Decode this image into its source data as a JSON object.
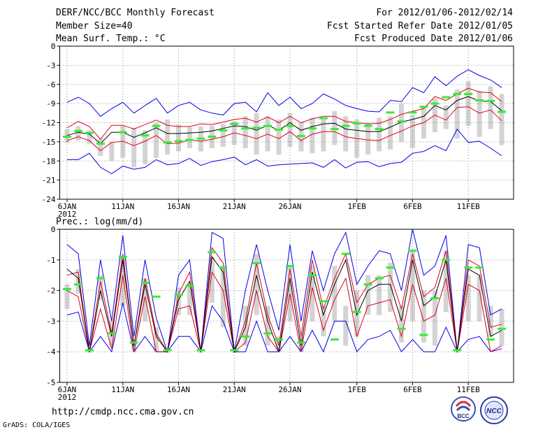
{
  "header": {
    "title": "DERF/NCC/BCC Monthly Forecast",
    "member": "Member Size=40",
    "variable": "Mean Surf. Temp.: °C",
    "period": "For 2012/01/06-2012/02/14",
    "started": "Fcst Started Refer Date 2012/01/05",
    "produced": "Fcst Produced Date 2012/01/06"
  },
  "footer": {
    "url": "http://cmdp.ncc.cma.gov.cn",
    "grads": "GrADS: COLA/IGES",
    "logo1_text": "BCC",
    "logo2_text": "NCC"
  },
  "colors": {
    "bar": "#d3d3d3",
    "mean": "#000000",
    "std": "#e0001a",
    "range": "#0000e6",
    "obs": "#33ee33",
    "grid": "#888888"
  },
  "chart_data": [
    {
      "type": "line",
      "title": "Mean Surf. Temp.: °C",
      "xlabel": "",
      "ylabel": "",
      "ylim": [
        -24,
        0
      ],
      "yticks": [
        0,
        -3,
        -6,
        -9,
        -12,
        -15,
        -18,
        -21,
        -24
      ],
      "x_ticks": [
        {
          "day": 1,
          "label": "6JAN"
        },
        {
          "day": 6,
          "label": "11JAN"
        },
        {
          "day": 11,
          "label": "16JAN"
        },
        {
          "day": 16,
          "label": "21JAN"
        },
        {
          "day": 21,
          "label": "26JAN"
        },
        {
          "day": 27,
          "label": "1FEB"
        },
        {
          "day": 32,
          "label": "6FEB"
        },
        {
          "day": 37,
          "label": "11FEB"
        }
      ],
      "year_label": "2012",
      "days": [
        1,
        2,
        3,
        4,
        5,
        6,
        7,
        8,
        9,
        10,
        11,
        12,
        13,
        14,
        15,
        16,
        17,
        18,
        19,
        20,
        21,
        22,
        23,
        24,
        25,
        26,
        27,
        28,
        29,
        30,
        31,
        32,
        33,
        34,
        35,
        36,
        37,
        38,
        39,
        40
      ],
      "series": [
        {
          "name": "bar_high",
          "values": [
            -13.0,
            -12.5,
            -13.2,
            -14.5,
            -15.0,
            -12.5,
            -12.8,
            -13.2,
            -12.0,
            -11.5,
            -12.3,
            -12.7,
            -12.6,
            -12.5,
            -12.2,
            -11.8,
            -11.0,
            -10.5,
            -11.0,
            -11.5,
            -10.5,
            -12.0,
            -11.2,
            -11.5,
            -10.2,
            -11.0,
            -11.5,
            -12.0,
            -11.2,
            -11.0,
            -9.0,
            -10.8,
            -9.5,
            -8.2,
            -9.3,
            -6.8,
            -5.5,
            -7.0,
            -6.3,
            -7.5
          ]
        },
        {
          "name": "bar_low",
          "values": [
            -15.2,
            -14.8,
            -15.3,
            -17.2,
            -18.0,
            -17.5,
            -19.0,
            -18.5,
            -17.5,
            -17.0,
            -16.5,
            -16.0,
            -16.5,
            -16.0,
            -15.8,
            -15.5,
            -16.0,
            -17.0,
            -16.5,
            -17.0,
            -15.8,
            -16.5,
            -16.8,
            -16.5,
            -15.5,
            -16.5,
            -17.5,
            -17.0,
            -16.5,
            -16.2,
            -15.0,
            -16.0,
            -14.5,
            -13.5,
            -13.0,
            -14.5,
            -12.5,
            -14.2,
            -13.0,
            -15.5
          ]
        },
        {
          "name": "ens_max",
          "values": [
            -8.8,
            -8.0,
            -9.0,
            -11.0,
            -9.8,
            -8.8,
            -10.5,
            -9.3,
            -8.2,
            -10.5,
            -9.3,
            -8.8,
            -10.0,
            -10.5,
            -10.8,
            -9.0,
            -8.8,
            -10.3,
            -7.3,
            -9.3,
            -8.0,
            -9.8,
            -9.0,
            -7.5,
            -8.3,
            -9.3,
            -9.8,
            -10.2,
            -10.3,
            -8.5,
            -8.7,
            -6.5,
            -7.3,
            -4.8,
            -6.2,
            -4.7,
            -3.7,
            -4.6,
            -5.3,
            -6.5
          ]
        },
        {
          "name": "std_high",
          "values": [
            -12.8,
            -11.8,
            -12.6,
            -14.6,
            -12.4,
            -12.4,
            -13.0,
            -12.3,
            -11.6,
            -12.4,
            -12.6,
            -12.6,
            -12.2,
            -12.3,
            -11.9,
            -11.5,
            -11.3,
            -11.9,
            -11.1,
            -12.0,
            -11.0,
            -12.0,
            -11.4,
            -11.0,
            -11.0,
            -11.8,
            -12.0,
            -12.2,
            -12.1,
            -11.5,
            -10.7,
            -10.2,
            -9.8,
            -7.9,
            -8.5,
            -7.5,
            -6.6,
            -7.2,
            -7.3,
            -8.7
          ]
        },
        {
          "name": "mean",
          "values": [
            -14.0,
            -13.5,
            -13.8,
            -15.3,
            -13.5,
            -13.5,
            -14.3,
            -13.6,
            -12.8,
            -13.7,
            -13.7,
            -13.6,
            -13.5,
            -13.3,
            -12.9,
            -12.5,
            -12.6,
            -13.2,
            -12.4,
            -13.2,
            -12.0,
            -13.2,
            -12.6,
            -12.2,
            -12.1,
            -13.0,
            -13.2,
            -13.4,
            -13.4,
            -12.7,
            -11.9,
            -11.5,
            -11.0,
            -9.3,
            -10.0,
            -8.5,
            -7.9,
            -8.6,
            -8.7,
            -10.1
          ]
        },
        {
          "name": "std_low",
          "values": [
            -14.8,
            -14.2,
            -14.8,
            -16.4,
            -15.1,
            -14.9,
            -15.6,
            -14.9,
            -14.0,
            -15.3,
            -15.2,
            -14.7,
            -14.9,
            -14.6,
            -14.2,
            -13.6,
            -14.0,
            -14.5,
            -13.8,
            -14.5,
            -13.4,
            -14.8,
            -13.8,
            -13.4,
            -13.4,
            -14.2,
            -14.5,
            -14.7,
            -14.8,
            -14.0,
            -13.3,
            -12.5,
            -12.0,
            -10.8,
            -11.6,
            -9.6,
            -9.5,
            -10.5,
            -10.0,
            -11.7
          ]
        },
        {
          "name": "ens_min",
          "values": [
            -17.8,
            -17.8,
            -16.8,
            -19.0,
            -20.0,
            -18.8,
            -19.3,
            -19.0,
            -17.8,
            -18.6,
            -18.4,
            -17.6,
            -18.7,
            -18.1,
            -17.8,
            -17.4,
            -18.6,
            -17.8,
            -18.8,
            -18.6,
            -18.5,
            -18.4,
            -18.3,
            -19.0,
            -17.8,
            -19.1,
            -18.2,
            -18.1,
            -18.9,
            -18.4,
            -18.2,
            -16.8,
            -16.5,
            -15.6,
            -16.4,
            -13.0,
            -15.1,
            -14.9,
            -16.0,
            -17.2
          ]
        },
        {
          "name": "observed",
          "values": [
            -14.2,
            -13.3,
            -13.6,
            -15.3,
            null,
            -13.5,
            null,
            -14.0,
            -12.5,
            -15.1,
            -14.9,
            -14.7,
            -14.5,
            -14.2,
            -13.2,
            -12.2,
            -12.9,
            -12.8,
            -12.5,
            -13.1,
            -12.5,
            -14.1,
            -12.9,
            -11.3,
            -13.0,
            -12.5,
            -12.1,
            -12.5,
            -13.0,
            -10.4,
            -11.8,
            -10.4,
            -9.5,
            -9.0,
            -8.0,
            -7.5,
            -7.5,
            -8.5,
            -8.6,
            -10.3
          ]
        }
      ]
    },
    {
      "type": "line",
      "title": "Prec.: log(mm/d)",
      "xlabel": "",
      "ylabel": "",
      "ylim": [
        -5,
        0
      ],
      "yticks": [
        0,
        -1,
        -2,
        -3,
        -4,
        -5
      ],
      "x_ticks": [
        {
          "day": 1,
          "label": "6JAN"
        },
        {
          "day": 6,
          "label": "11JAN"
        },
        {
          "day": 11,
          "label": "16JAN"
        },
        {
          "day": 16,
          "label": "21JAN"
        },
        {
          "day": 21,
          "label": "26JAN"
        },
        {
          "day": 27,
          "label": "1FEB"
        },
        {
          "day": 32,
          "label": "6FEB"
        },
        {
          "day": 37,
          "label": "11FEB"
        }
      ],
      "year_label": "2012",
      "days": [
        1,
        2,
        3,
        4,
        5,
        6,
        7,
        8,
        9,
        10,
        11,
        12,
        13,
        14,
        15,
        16,
        17,
        18,
        19,
        20,
        21,
        22,
        23,
        24,
        25,
        26,
        27,
        28,
        29,
        30,
        31,
        32,
        33,
        34,
        35,
        36,
        37,
        38,
        39,
        40
      ],
      "series": [
        {
          "name": "bar_high",
          "values": [
            -1.8,
            -1.3,
            -4.0,
            -1.5,
            -3.0,
            -0.9,
            -3.6,
            -1.6,
            -3.2,
            -4.0,
            -1.9,
            -1.8,
            -4.0,
            -0.9,
            -1.2,
            -4.0,
            -2.5,
            -0.8,
            -2.5,
            -3.5,
            -1.2,
            -3.5,
            -1.2,
            -2.5,
            -1.2,
            -2.5,
            -2.0,
            -1.5,
            -1.5,
            -1.1,
            -2.5,
            -0.7,
            -2.0,
            -2.0,
            -0.7,
            -4.0,
            -1.5,
            -1.5,
            -2.5,
            -2.6
          ]
        },
        {
          "name": "bar_low",
          "values": [
            -2.6,
            -2.1,
            -4.0,
            -2.3,
            -3.8,
            -2.5,
            -4.0,
            -3.0,
            -4.0,
            -4.0,
            -2.8,
            -2.8,
            -4.0,
            -2.4,
            -3.2,
            -4.0,
            -3.8,
            -2.8,
            -3.8,
            -4.0,
            -3.0,
            -4.0,
            -3.0,
            -3.5,
            -3.0,
            -3.8,
            -3.5,
            -2.8,
            -2.8,
            -2.7,
            -3.7,
            -3.0,
            -3.7,
            -3.8,
            -2.7,
            -4.0,
            -3.0,
            -3.0,
            -3.5,
            -3.8
          ]
        },
        {
          "name": "ens_max",
          "values": [
            -0.5,
            -0.8,
            -3.8,
            -1.0,
            -3.0,
            -0.2,
            -3.5,
            -1.0,
            -2.9,
            -4.0,
            -1.5,
            -1.0,
            -4.0,
            -0.1,
            -0.3,
            -4.0,
            -2.0,
            -0.5,
            -2.0,
            -3.3,
            -0.5,
            -3.0,
            -0.7,
            -2.0,
            -0.8,
            -0.1,
            -1.8,
            -1.2,
            -0.7,
            -0.8,
            -2.0,
            0.0,
            -1.5,
            -1.2,
            -0.2,
            -4.0,
            -0.5,
            -0.6,
            -2.8,
            -2.6
          ]
        },
        {
          "name": "std_high",
          "values": [
            -1.5,
            -1.4,
            -4.0,
            -1.7,
            -3.4,
            -0.8,
            -3.8,
            -1.6,
            -3.4,
            -4.0,
            -2.1,
            -1.4,
            -4.0,
            -0.6,
            -1.1,
            -4.0,
            -3.0,
            -1.1,
            -2.8,
            -3.8,
            -1.3,
            -3.5,
            -1.0,
            -2.6,
            -1.6,
            -0.8,
            -2.4,
            -1.8,
            -1.6,
            -1.5,
            -2.6,
            -0.8,
            -2.2,
            -1.9,
            -0.7,
            -4.0,
            -1.0,
            -1.2,
            -3.2,
            -3.1
          ]
        },
        {
          "name": "mean",
          "values": [
            -1.3,
            -1.6,
            -4.0,
            -2.0,
            -3.5,
            -1.0,
            -3.8,
            -1.8,
            -3.5,
            -4.0,
            -2.3,
            -1.7,
            -4.0,
            -0.9,
            -1.4,
            -4.0,
            -3.2,
            -1.5,
            -3.0,
            -4.0,
            -1.6,
            -3.8,
            -1.4,
            -2.8,
            -1.8,
            -1.0,
            -2.8,
            -2.0,
            -1.8,
            -1.8,
            -3.0,
            -1.0,
            -2.5,
            -2.2,
            -1.0,
            -4.0,
            -1.3,
            -1.5,
            -3.5,
            -3.3
          ]
        },
        {
          "name": "std_low",
          "values": [
            -2.0,
            -2.2,
            -4.0,
            -2.6,
            -3.9,
            -1.5,
            -4.0,
            -2.2,
            -4.0,
            -4.0,
            -2.6,
            -2.5,
            -4.0,
            -1.4,
            -2.0,
            -4.0,
            -3.7,
            -2.0,
            -3.5,
            -4.0,
            -2.1,
            -4.0,
            -1.9,
            -3.3,
            -2.3,
            -1.6,
            -3.5,
            -2.5,
            -2.4,
            -2.3,
            -3.5,
            -1.8,
            -3.0,
            -2.8,
            -1.6,
            -4.0,
            -1.8,
            -2.0,
            -4.0,
            -3.8
          ]
        },
        {
          "name": "ens_min",
          "values": [
            -2.8,
            -2.7,
            -4.0,
            -3.5,
            -4.0,
            -2.4,
            -4.0,
            -3.5,
            -4.0,
            -4.0,
            -3.5,
            -3.5,
            -4.0,
            -2.5,
            -3.0,
            -4.0,
            -4.0,
            -3.0,
            -4.0,
            -4.0,
            -3.5,
            -4.0,
            -3.3,
            -4.0,
            -3.0,
            -3.0,
            -4.0,
            -3.6,
            -3.5,
            -3.3,
            -4.0,
            -3.6,
            -4.0,
            -4.0,
            -3.2,
            -4.0,
            -3.6,
            -3.5,
            -4.0,
            -3.9
          ]
        },
        {
          "name": "observed",
          "values": [
            -1.95,
            -1.8,
            -3.95,
            -1.6,
            -3.4,
            -0.9,
            -3.7,
            -1.75,
            -2.2,
            -3.95,
            -2.15,
            -1.85,
            -3.95,
            -0.75,
            -1.25,
            -3.95,
            -3.5,
            -1.1,
            -3.4,
            -3.6,
            -1.2,
            -3.7,
            -1.5,
            -2.35,
            -3.6,
            -0.8,
            -2.7,
            -1.8,
            -1.6,
            -1.25,
            -3.25,
            -0.7,
            -3.45,
            -2.25,
            -1.0,
            -3.95,
            -1.25,
            -1.25,
            -3.6,
            -3.25
          ]
        }
      ]
    }
  ]
}
